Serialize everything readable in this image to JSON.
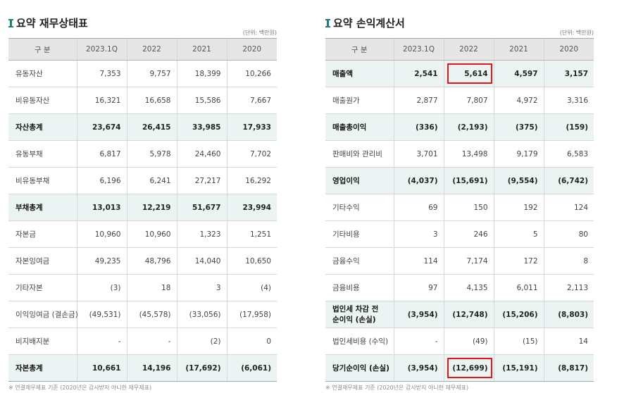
{
  "balance": {
    "title": "요약 재무상태표",
    "unit": "(단위: 백만원)",
    "headers": [
      "구 분",
      "2023.1Q",
      "2022",
      "2021",
      "2020"
    ],
    "rows": [
      {
        "label": "유동자산",
        "values": [
          "7,353",
          "9,757",
          "18,399",
          "10,266"
        ],
        "total": false
      },
      {
        "label": "비유동자산",
        "values": [
          "16,321",
          "16,658",
          "15,586",
          "7,667"
        ],
        "total": false
      },
      {
        "label": "자산총계",
        "values": [
          "23,674",
          "26,415",
          "33,985",
          "17,933"
        ],
        "total": true
      },
      {
        "label": "유동부채",
        "values": [
          "6,817",
          "5,978",
          "24,460",
          "7,702"
        ],
        "total": false
      },
      {
        "label": "비유동부채",
        "values": [
          "6,196",
          "6,241",
          "27,217",
          "16,292"
        ],
        "total": false
      },
      {
        "label": "부채총계",
        "values": [
          "13,013",
          "12,219",
          "51,677",
          "23,994"
        ],
        "total": true
      },
      {
        "label": "자본금",
        "values": [
          "10,960",
          "10,960",
          "1,323",
          "1,251"
        ],
        "total": false
      },
      {
        "label": "자본잉여금",
        "values": [
          "49,235",
          "48,796",
          "14,040",
          "10,650"
        ],
        "total": false
      },
      {
        "label": "기타자본",
        "values": [
          "(3)",
          "18",
          "3",
          "(4)"
        ],
        "total": false
      },
      {
        "label": "이익잉여금 (결손금)",
        "values": [
          "(49,531)",
          "(45,578)",
          "(33,056)",
          "(17,958)"
        ],
        "total": false
      },
      {
        "label": "비지배지분",
        "values": [
          "-",
          "-",
          "(2)",
          "0"
        ],
        "total": false
      },
      {
        "label": "자본총계",
        "values": [
          "10,661",
          "14,196",
          "(17,692)",
          "(6,061)"
        ],
        "total": true
      }
    ],
    "footnote": "※ 연결재무제표 기준 (2020년은 감사받지 아니한 재무제표)"
  },
  "income": {
    "title": "요약 손익계산서",
    "unit": "(단위: 백만원)",
    "headers": [
      "구 분",
      "2023.1Q",
      "2022",
      "2021",
      "2020"
    ],
    "rows": [
      {
        "label": "매출액",
        "values": [
          "2,541",
          "5,614",
          "4,597",
          "3,157"
        ],
        "total": true
      },
      {
        "label": "매출원가",
        "values": [
          "2,877",
          "7,807",
          "4,972",
          "3,316"
        ],
        "total": false
      },
      {
        "label": "매출총이익",
        "values": [
          "(336)",
          "(2,193)",
          "(375)",
          "(159)"
        ],
        "total": true
      },
      {
        "label": "판매비와 관리비",
        "values": [
          "3,701",
          "13,498",
          "9,179",
          "6,583"
        ],
        "total": false
      },
      {
        "label": "영업이익",
        "values": [
          "(4,037)",
          "(15,691)",
          "(9,554)",
          "(6,742)"
        ],
        "total": true
      },
      {
        "label": "기타수익",
        "values": [
          "69",
          "150",
          "192",
          "124"
        ],
        "total": false
      },
      {
        "label": "기타비용",
        "values": [
          "3",
          "246",
          "5",
          "80"
        ],
        "total": false
      },
      {
        "label": "금융수익",
        "values": [
          "114",
          "7,174",
          "172",
          "8"
        ],
        "total": false
      },
      {
        "label": "금융비용",
        "values": [
          "97",
          "4,135",
          "6,011",
          "2,113"
        ],
        "total": false
      },
      {
        "label": "법인세 차감 전 순이익 (손실)",
        "values": [
          "(3,954)",
          "(12,748)",
          "(15,206)",
          "(8,803)"
        ],
        "total": true
      },
      {
        "label": "법인세비용 (수익)",
        "values": [
          "-",
          "(49)",
          "(15)",
          "14"
        ],
        "total": false
      },
      {
        "label": "당기순이익 (손실)",
        "values": [
          "(3,954)",
          "(12,699)",
          "(15,191)",
          "(8,817)"
        ],
        "total": true
      }
    ],
    "highlight_color": "#e8141c",
    "footnote": "※ 연결재무제표 기준 (2020년은 감사받지 아니한 재무제표)"
  }
}
